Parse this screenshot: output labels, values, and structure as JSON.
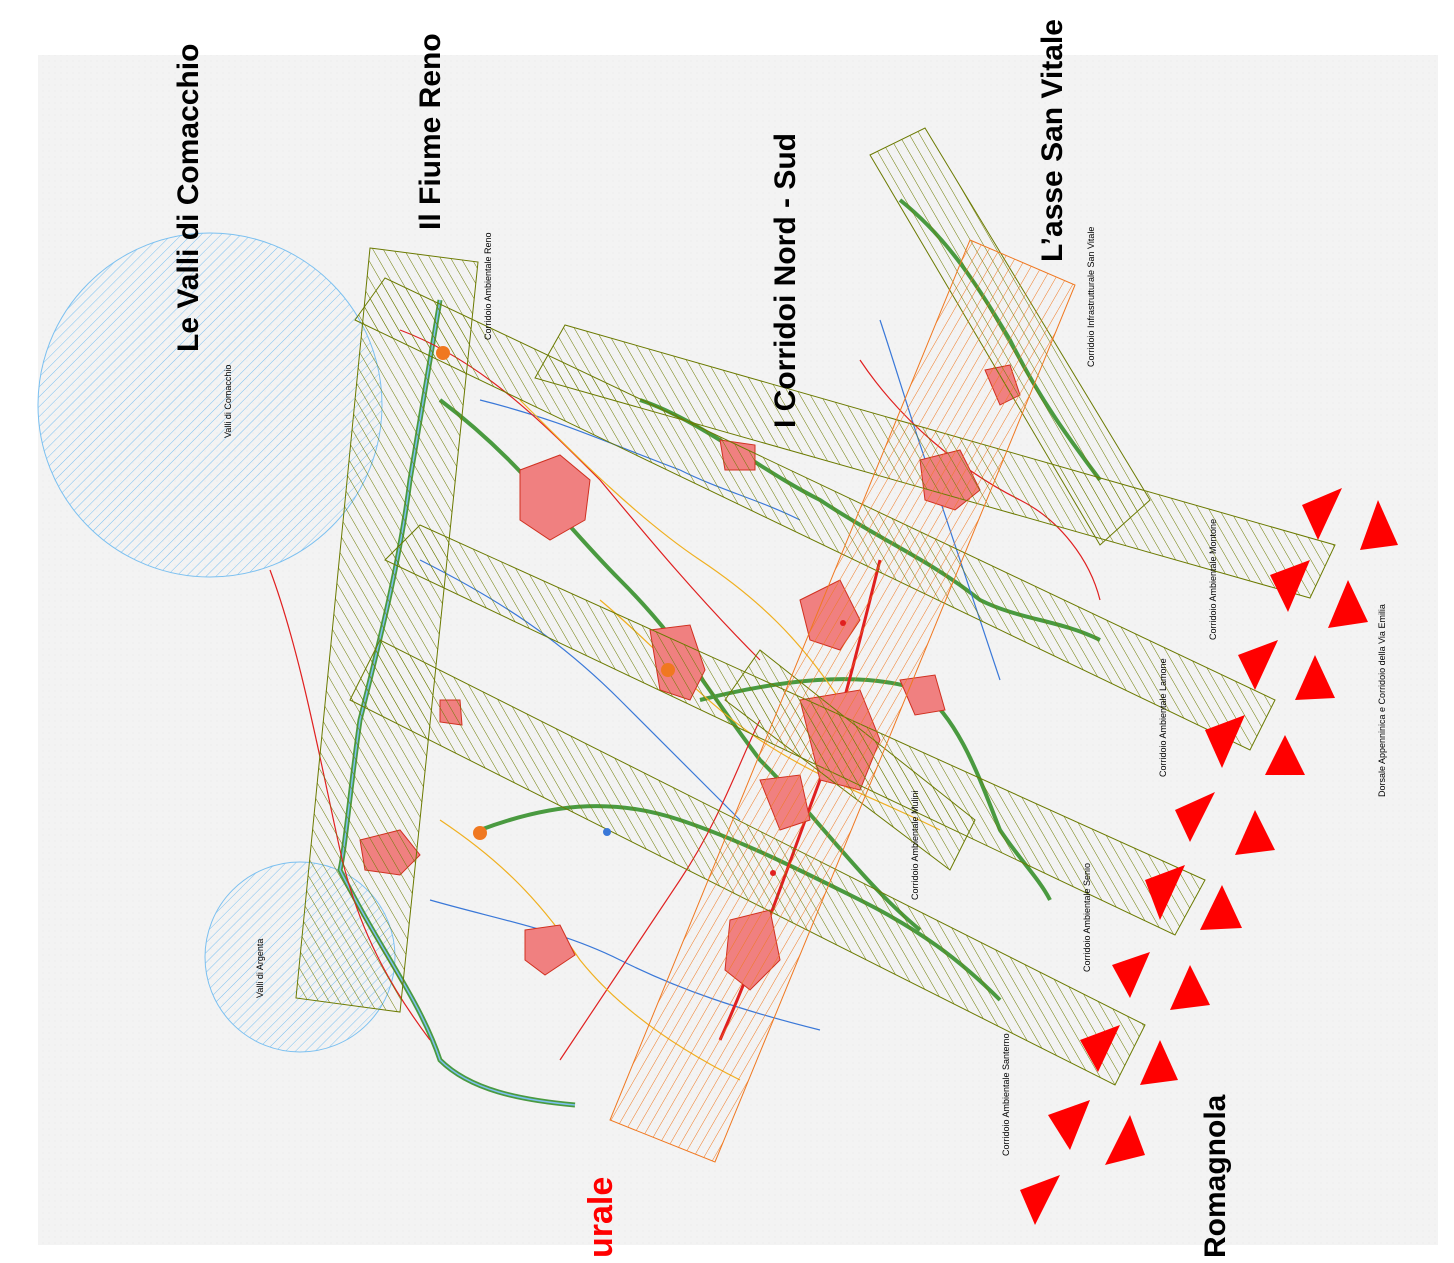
{
  "colors": {
    "background": "#f0f0f0",
    "water_zone": "#7cc0f0",
    "green_corridor": "#6b7a00",
    "orange_corridor": "#f07820",
    "urban_fill": "#f08080",
    "urban_stroke": "#d03020",
    "triangle_red": "#ff0000",
    "river_blue": "#3a78d8",
    "river_green": "#4a9a40",
    "road_red": "#e02020",
    "road_yellow": "#f0b020",
    "title_red": "#ff0000"
  },
  "titles": {
    "valli_comacchio": "Le Valli di Comacchio",
    "fiume_reno": "Il Fiume Reno",
    "corridoi_nord_sud": "I Corridoi Nord - Sud",
    "asse_san_vitale": "L’asse San Vitale",
    "romagnola": "Romagnola",
    "urale_partial": "urale"
  },
  "labels": {
    "valli_comacchio_small": "Valli di Comacchio",
    "valli_argenta": "Valli di Argenta",
    "corridoio_reno": "Corridoio Ambientale Reno",
    "corridoio_san_vitale": "Corridoio Infrastrutturale San Vitale",
    "corridoio_montone": "Corridoio Ambientale Montone",
    "corridoio_lamone": "Corridoio Ambientale Lamone",
    "corridoio_mulini": "Corridoio Ambientale Mulini",
    "corridoio_senio": "Corridoio Ambientale Senio",
    "corridoio_santerno": "Corridoio Ambientale Santerno",
    "dorsale": "Dorsale Appenninica e Corridoio della Via Emilia"
  },
  "icons": {
    "triangle": "red-triangle-marker",
    "node": "orange-node-marker"
  }
}
